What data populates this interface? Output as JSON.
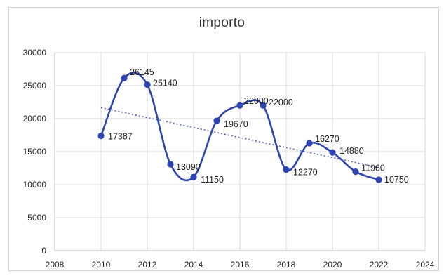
{
  "chart_data": {
    "type": "line",
    "title": "importo",
    "xlabel": "",
    "ylabel": "",
    "xlim": [
      2008,
      2024
    ],
    "ylim": [
      0,
      30000
    ],
    "x_ticks": [
      "2008",
      "2010",
      "2012",
      "2014",
      "2016",
      "2018",
      "2020",
      "2022",
      "2024"
    ],
    "y_ticks": [
      "0",
      "5000",
      "10000",
      "15000",
      "20000",
      "25000",
      "30000"
    ],
    "grid": true,
    "legend": "none",
    "smooth": true,
    "trendline": "linear",
    "series": [
      {
        "color": "#2e44b0",
        "x": [
          2010,
          2011,
          2012,
          2013,
          2014,
          2015,
          2016,
          2017,
          2018,
          2019,
          2020,
          2021,
          2022
        ],
        "values": [
          17387,
          26145,
          25140,
          13090,
          11150,
          19670,
          22000,
          22000,
          12270,
          16270,
          14880,
          11960,
          10750
        ],
        "labels": [
          "17387",
          "26145",
          "25140",
          "13090",
          "11150",
          "19670",
          "22000",
          "22000",
          "12270",
          "16270",
          "14880",
          "11960",
          "10750"
        ]
      }
    ],
    "trend_color": "#5566bb",
    "grid_color": "#d9d9d9"
  }
}
